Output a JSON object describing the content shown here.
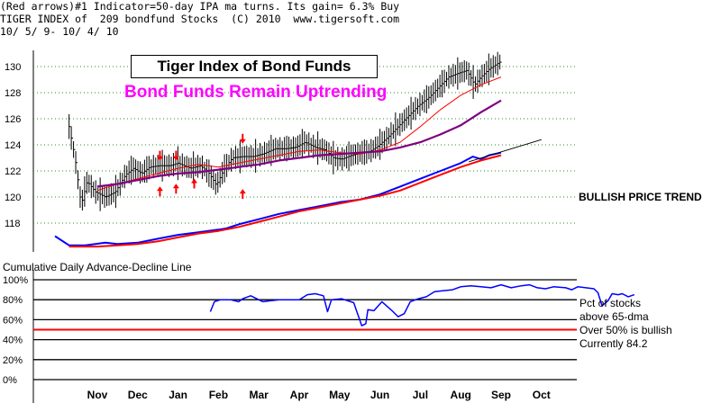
{
  "header": {
    "line1": "(Red arrows)#1 Indicator=50-day IPA ma turns. Its gain= 6.3% Buy",
    "line2": "TIGER INDEX of  209 bondfund Stocks  (C) 2010  www.tigersoft.com",
    "line3": "10/ 5/ 9- 10/ 4/ 10"
  },
  "title": "Tiger Index of Bond Funds",
  "subtitle": "Bond Funds Remain Uptrending",
  "trend_label": "BULLISH PRICE TREND",
  "lower_title": "Cumulative Daily Advance-Decline Line",
  "notes": [
    "Pct of stocks",
    "above 65-dma",
    "Over 50% is bullish",
    "Currently  84.2"
  ],
  "colors": {
    "price_bars": "#000000",
    "ma50": "#ff0000",
    "ma200": "#800080",
    "ad_line": "#0000ff",
    "ad_ma": "#ff0000",
    "pct_line": "#0000ff",
    "threshold": "#ff0000",
    "arrows": "#ff0000",
    "title_accent": "#ff00ff"
  },
  "chart_data": [
    {
      "type": "line",
      "title": "Tiger Index of Bond Funds",
      "x_labels": [
        "Nov",
        "Dec",
        "Jan",
        "Feb",
        "Mar",
        "Apr",
        "May",
        "Jun",
        "Jul",
        "Aug",
        "Sep",
        "Oct"
      ],
      "y_ticks": [
        118,
        120,
        122,
        124,
        126,
        128,
        130
      ],
      "ylim": [
        117,
        131
      ],
      "grid": "dotted",
      "series": [
        {
          "name": "price",
          "style": "ohlc-bars",
          "points": [
            [
              -0.7,
              125.4
            ],
            [
              -0.55,
              123.0
            ],
            [
              -0.4,
              119.4
            ],
            [
              -0.25,
              121.2
            ],
            [
              -0.05,
              120.4
            ],
            [
              0.2,
              120.0
            ],
            [
              0.45,
              120.4
            ],
            [
              0.7,
              121.7
            ],
            [
              0.9,
              122.2
            ],
            [
              1.1,
              121.8
            ],
            [
              1.3,
              122.3
            ],
            [
              1.55,
              122.4
            ],
            [
              1.8,
              122.4
            ],
            [
              2.0,
              122.6
            ],
            [
              2.3,
              122.2
            ],
            [
              2.55,
              122.4
            ],
            [
              2.75,
              121.9
            ],
            [
              2.95,
              120.9
            ],
            [
              3.15,
              122.2
            ],
            [
              3.35,
              123.0
            ],
            [
              3.6,
              123.1
            ],
            [
              3.85,
              123.1
            ],
            [
              4.1,
              123.3
            ],
            [
              4.4,
              123.7
            ],
            [
              4.65,
              123.7
            ],
            [
              4.9,
              123.8
            ],
            [
              5.15,
              124.2
            ],
            [
              5.4,
              123.8
            ],
            [
              5.65,
              123.6
            ],
            [
              5.85,
              123.0
            ],
            [
              6.05,
              122.9
            ],
            [
              6.3,
              123.2
            ],
            [
              6.55,
              123.4
            ],
            [
              6.75,
              123.5
            ],
            [
              6.95,
              123.9
            ],
            [
              7.2,
              124.6
            ],
            [
              7.45,
              125.4
            ],
            [
              7.7,
              126.2
            ],
            [
              7.95,
              127.0
            ],
            [
              8.2,
              127.6
            ],
            [
              8.45,
              128.4
            ],
            [
              8.7,
              129.2
            ],
            [
              8.95,
              129.5
            ],
            [
              9.15,
              129.7
            ],
            [
              9.35,
              128.6
            ],
            [
              9.5,
              129.2
            ],
            [
              9.7,
              129.8
            ],
            [
              9.85,
              130.1
            ],
            [
              10.0,
              130.4
            ]
          ]
        },
        {
          "name": "ma50",
          "points": [
            [
              0.0,
              120.5
            ],
            [
              0.5,
              121.0
            ],
            [
              1.0,
              121.4
            ],
            [
              1.5,
              121.8
            ],
            [
              2.0,
              122.2
            ],
            [
              2.5,
              122.5
            ],
            [
              3.0,
              122.3
            ],
            [
              3.5,
              122.6
            ],
            [
              4.0,
              122.9
            ],
            [
              4.5,
              123.2
            ],
            [
              5.0,
              123.5
            ],
            [
              5.5,
              123.6
            ],
            [
              6.0,
              123.4
            ],
            [
              6.5,
              123.3
            ],
            [
              7.0,
              123.6
            ],
            [
              7.5,
              124.2
            ],
            [
              8.0,
              125.4
            ],
            [
              8.5,
              126.7
            ],
            [
              9.0,
              127.8
            ],
            [
              9.5,
              128.6
            ],
            [
              10.0,
              129.2
            ]
          ]
        },
        {
          "name": "ma200",
          "points": [
            [
              0.0,
              120.8
            ],
            [
              0.5,
              121.0
            ],
            [
              1.0,
              121.3
            ],
            [
              1.5,
              121.6
            ],
            [
              2.0,
              121.8
            ],
            [
              2.5,
              121.9
            ],
            [
              3.0,
              122.1
            ],
            [
              3.5,
              122.3
            ],
            [
              4.0,
              122.5
            ],
            [
              4.5,
              122.8
            ],
            [
              5.0,
              123.0
            ],
            [
              5.5,
              123.2
            ],
            [
              6.0,
              123.3
            ],
            [
              6.5,
              123.4
            ],
            [
              7.0,
              123.5
            ],
            [
              7.5,
              123.8
            ],
            [
              8.0,
              124.2
            ],
            [
              8.5,
              124.8
            ],
            [
              9.0,
              125.5
            ],
            [
              9.5,
              126.5
            ],
            [
              10.0,
              127.4
            ]
          ]
        },
        {
          "name": "ad_line",
          "points": [
            [
              -1.05,
              117.0
            ],
            [
              -0.7,
              116.3
            ],
            [
              -0.3,
              116.3
            ],
            [
              0.2,
              116.5
            ],
            [
              0.5,
              116.4
            ],
            [
              1.0,
              116.5
            ],
            [
              1.5,
              116.8
            ],
            [
              2.0,
              117.1
            ],
            [
              2.5,
              117.3
            ],
            [
              3.0,
              117.5
            ],
            [
              3.2,
              117.6
            ],
            [
              3.5,
              117.9
            ],
            [
              4.0,
              118.3
            ],
            [
              4.5,
              118.7
            ],
            [
              5.0,
              119.0
            ],
            [
              5.5,
              119.3
            ],
            [
              6.0,
              119.6
            ],
            [
              6.5,
              119.8
            ],
            [
              7.0,
              120.2
            ],
            [
              7.5,
              120.8
            ],
            [
              8.0,
              121.4
            ],
            [
              8.5,
              122.0
            ],
            [
              9.0,
              122.6
            ],
            [
              9.3,
              123.1
            ],
            [
              9.5,
              122.9
            ],
            [
              9.7,
              123.2
            ],
            [
              10.0,
              123.4
            ]
          ]
        },
        {
          "name": "ad_ma",
          "points": [
            [
              -0.7,
              116.2
            ],
            [
              0.0,
              116.2
            ],
            [
              0.5,
              116.3
            ],
            [
              1.0,
              116.4
            ],
            [
              1.5,
              116.6
            ],
            [
              2.0,
              116.9
            ],
            [
              2.5,
              117.2
            ],
            [
              3.0,
              117.4
            ],
            [
              3.5,
              117.7
            ],
            [
              4.0,
              118.1
            ],
            [
              4.5,
              118.5
            ],
            [
              5.0,
              118.9
            ],
            [
              5.5,
              119.2
            ],
            [
              6.0,
              119.5
            ],
            [
              6.5,
              119.8
            ],
            [
              7.0,
              120.1
            ],
            [
              7.5,
              120.5
            ],
            [
              8.0,
              121.1
            ],
            [
              8.5,
              121.7
            ],
            [
              9.0,
              122.3
            ],
            [
              9.5,
              122.8
            ],
            [
              10.0,
              123.2
            ]
          ]
        },
        {
          "name": "trendline",
          "points": [
            [
              9.2,
              122.7
            ],
            [
              11.0,
              124.4
            ]
          ]
        }
      ],
      "arrows": {
        "down": [
          [
            1.55,
            123.2
          ],
          [
            1.95,
            123.2
          ],
          [
            3.6,
            124.5
          ]
        ],
        "up": [
          [
            1.55,
            120.4
          ],
          [
            1.95,
            120.6
          ],
          [
            2.4,
            121.0
          ],
          [
            3.6,
            120.2
          ]
        ]
      }
    },
    {
      "type": "line",
      "title": "Cumulative Daily Advance-Decline Line",
      "x_labels": [
        "Nov",
        "Dec",
        "Jan",
        "Feb",
        "Mar",
        "Apr",
        "May",
        "Jun",
        "Jul",
        "Aug",
        "Sep",
        "Oct"
      ],
      "y_ticks": [
        "0%",
        "20%",
        "40%",
        "60%",
        "80%",
        "100%"
      ],
      "ylim": [
        0,
        100
      ],
      "hlines": [
        {
          "y": 50,
          "color": "#ff0000"
        }
      ],
      "series": [
        {
          "name": "Pct of stocks above 65-dma",
          "points": [
            [
              2.8,
              68
            ],
            [
              2.9,
              78
            ],
            [
              3.05,
              80
            ],
            [
              3.3,
              80
            ],
            [
              3.5,
              78
            ],
            [
              3.6,
              81
            ],
            [
              3.8,
              84
            ],
            [
              4.1,
              78
            ],
            [
              4.3,
              79
            ],
            [
              4.5,
              80
            ],
            [
              4.75,
              80
            ],
            [
              5.0,
              80
            ],
            [
              5.2,
              85
            ],
            [
              5.4,
              86
            ],
            [
              5.6,
              84
            ],
            [
              5.7,
              68
            ],
            [
              5.8,
              80
            ],
            [
              6.05,
              81
            ],
            [
              6.35,
              77
            ],
            [
              6.55,
              54
            ],
            [
              6.65,
              56
            ],
            [
              6.7,
              70
            ],
            [
              6.85,
              69
            ],
            [
              7.05,
              78
            ],
            [
              7.3,
              69
            ],
            [
              7.45,
              63
            ],
            [
              7.6,
              66
            ],
            [
              7.75,
              78
            ],
            [
              7.95,
              81
            ],
            [
              8.15,
              83
            ],
            [
              8.35,
              88
            ],
            [
              8.55,
              89
            ],
            [
              8.8,
              90
            ],
            [
              9.0,
              93
            ],
            [
              9.25,
              94
            ],
            [
              9.5,
              93
            ],
            [
              9.75,
              92
            ],
            [
              10.0,
              95
            ],
            [
              10.25,
              92
            ],
            [
              10.5,
              94
            ],
            [
              10.7,
              95
            ],
            [
              10.9,
              92
            ],
            [
              11.1,
              91
            ],
            [
              11.3,
              93
            ],
            [
              11.6,
              92
            ],
            [
              11.75,
              90
            ],
            [
              11.9,
              93
            ],
            [
              12.1,
              92
            ],
            [
              12.3,
              91
            ],
            [
              12.4,
              87
            ],
            [
              12.5,
              74
            ],
            [
              12.65,
              79
            ],
            [
              12.75,
              86
            ],
            [
              12.9,
              85
            ],
            [
              13.0,
              86
            ],
            [
              13.15,
              83
            ],
            [
              13.3,
              85
            ]
          ]
        }
      ]
    }
  ]
}
